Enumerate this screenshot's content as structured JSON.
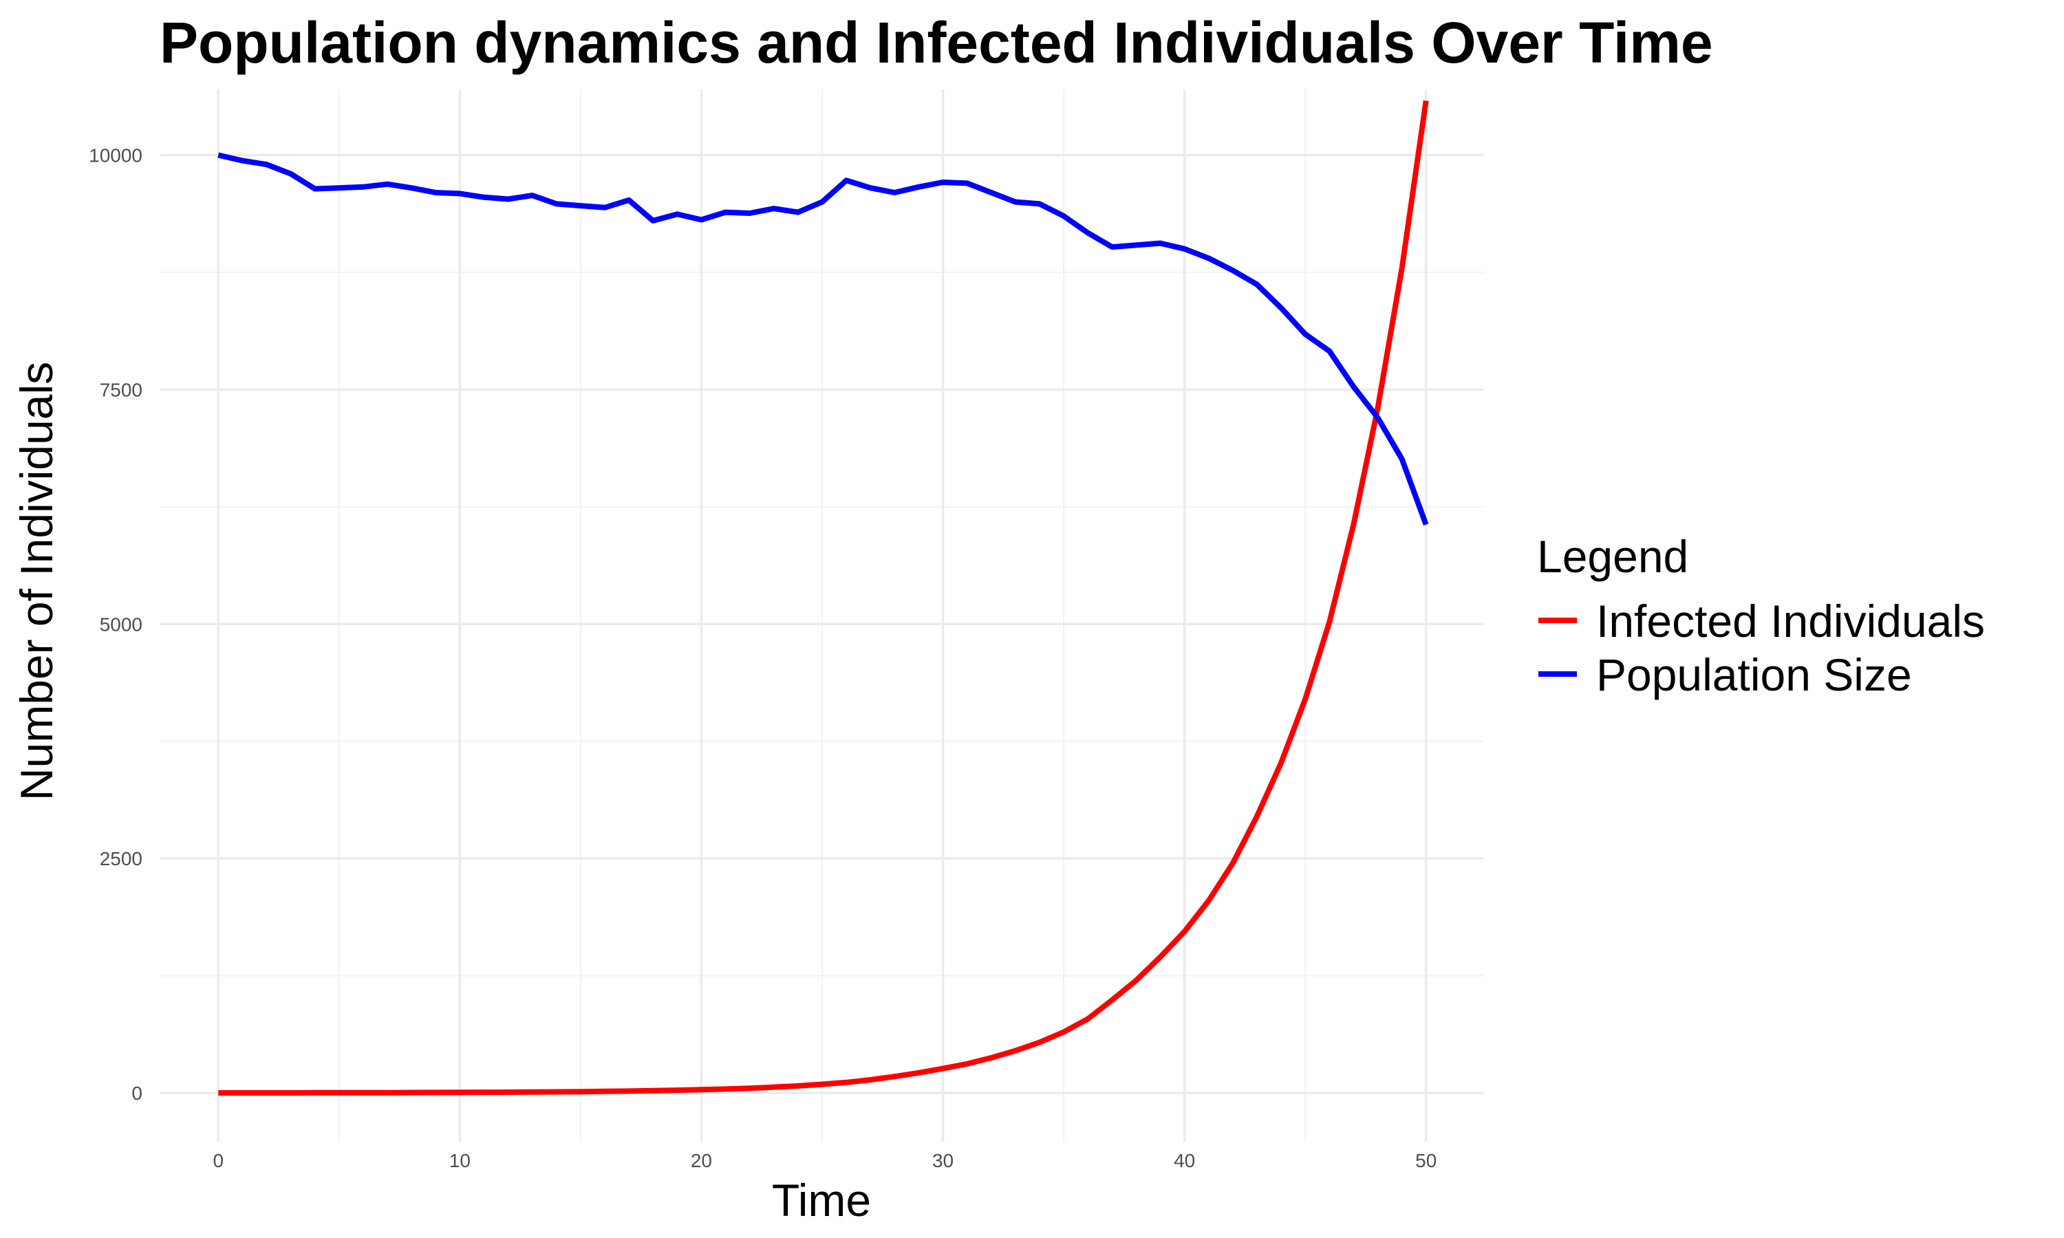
{
  "chart_data": {
    "type": "line",
    "title": "Population dynamics and Infected Individuals Over Time",
    "xlabel": "Time",
    "ylabel": "Number of Individuals",
    "xlim": [
      -2.4,
      52.4
    ],
    "ylim": [
      -520,
      10700
    ],
    "x_ticks": [
      0,
      10,
      20,
      30,
      40,
      50
    ],
    "y_ticks": [
      0,
      2500,
      5000,
      7500,
      10000
    ],
    "grid": true,
    "legend": {
      "title": "Legend",
      "placement": "right"
    },
    "x": [
      0,
      1,
      2,
      3,
      4,
      5,
      6,
      7,
      8,
      9,
      10,
      11,
      12,
      13,
      14,
      15,
      16,
      17,
      18,
      19,
      20,
      21,
      22,
      23,
      24,
      25,
      26,
      27,
      28,
      29,
      30,
      31,
      32,
      33,
      34,
      35,
      36,
      37,
      38,
      39,
      40,
      41,
      42,
      43,
      44,
      45,
      46,
      47,
      48,
      49,
      50
    ],
    "series": [
      {
        "name": "Infected Individuals",
        "color": "#ff0000",
        "values": [
          1,
          1,
          1,
          1,
          2,
          2,
          2,
          3,
          4,
          5,
          6,
          7,
          8,
          10,
          12,
          14,
          17,
          20,
          24,
          29,
          35,
          42,
          50,
          62,
          75,
          92,
          112,
          140,
          175,
          215,
          260,
          310,
          375,
          450,
          540,
          650,
          790,
          990,
          1200,
          1450,
          1720,
          2050,
          2450,
          2950,
          3520,
          4200,
          5020,
          6060,
          7300,
          8790,
          10580
        ]
      },
      {
        "name": "Population Size",
        "color": "#0000ff",
        "values": [
          10000,
          9940,
          9900,
          9800,
          9640,
          9650,
          9660,
          9690,
          9650,
          9600,
          9590,
          9550,
          9530,
          9570,
          9480,
          9460,
          9440,
          9520,
          9300,
          9370,
          9310,
          9390,
          9380,
          9430,
          9390,
          9500,
          9730,
          9650,
          9600,
          9660,
          9710,
          9700,
          9600,
          9500,
          9480,
          9350,
          9170,
          9020,
          9040,
          9060,
          9000,
          8900,
          8770,
          8620,
          8370,
          8090,
          7910,
          7530,
          7200,
          6760,
          6060
        ]
      }
    ]
  }
}
